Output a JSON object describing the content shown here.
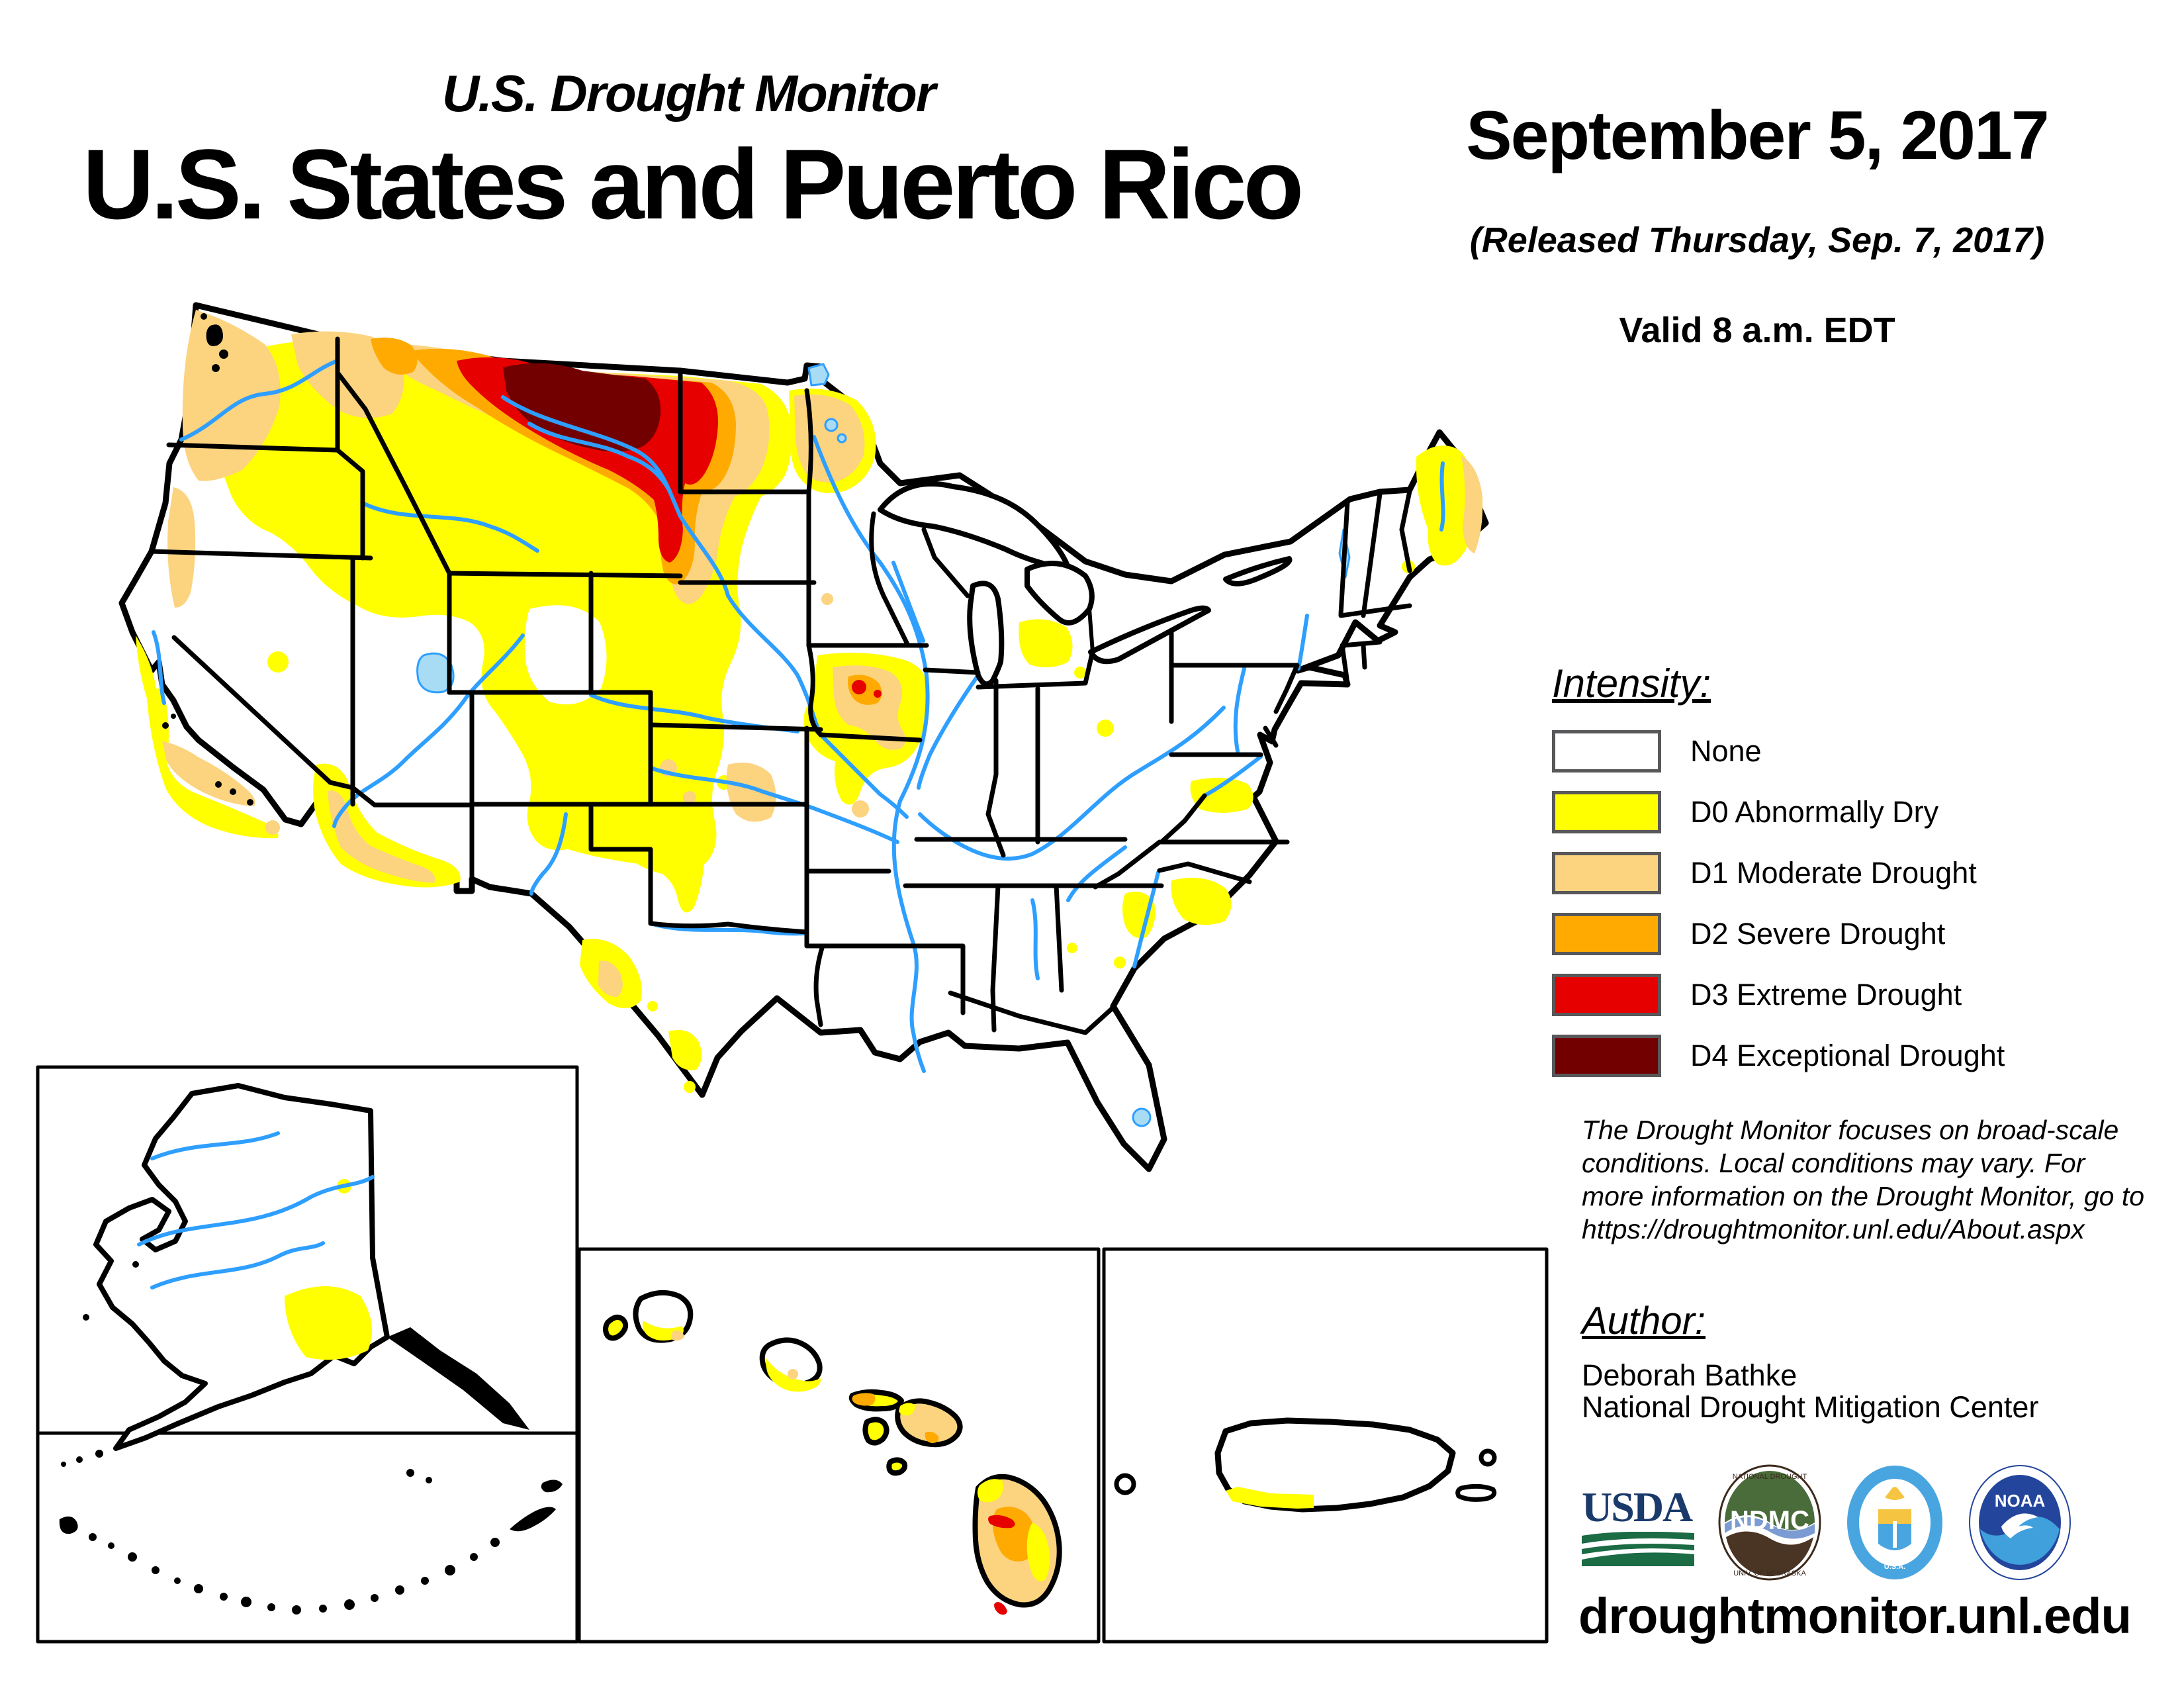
{
  "header": {
    "title_small": "U.S. Drought Monitor",
    "title_big": "U.S. States and Puerto Rico",
    "date": "September 5, 2017",
    "released": "(Released Thursday, Sep. 7, 2017)",
    "valid": "Valid 8 a.m. EDT"
  },
  "legend": {
    "title": "Intensity:",
    "items": [
      {
        "code": "none",
        "label": "None",
        "color": "#FFFFFF"
      },
      {
        "code": "d0",
        "label": "D0 Abnormally Dry",
        "color": "#FFFF00"
      },
      {
        "code": "d1",
        "label": "D1 Moderate Drought",
        "color": "#FCD37F"
      },
      {
        "code": "d2",
        "label": "D2 Severe Drought",
        "color": "#FFAA00"
      },
      {
        "code": "d3",
        "label": "D3 Extreme Drought",
        "color": "#E60000"
      },
      {
        "code": "d4",
        "label": "D4 Exceptional Drought",
        "color": "#730000"
      }
    ]
  },
  "disclaimer": "The Drought Monitor focuses on broad-scale conditions. Local conditions may vary. For more information on the Drought Monitor, go to https://droughtmonitor.unl.edu/About.aspx",
  "author": {
    "title": "Author:",
    "name": "Deborah Bathke",
    "org": "National Drought Mitigation Center"
  },
  "footer": {
    "url": "droughtmonitor.unl.edu",
    "logos": [
      {
        "name": "USDA",
        "label": "USDA"
      },
      {
        "name": "NDMC",
        "label": "NDMC",
        "ring_top": "NATIONAL DROUGHT MITIGATION CENTER",
        "ring_bottom": "UNIVERSITY OF NEBRASKA"
      },
      {
        "name": "Department of Commerce",
        "label": "DEPARTMENT OF COMMERCE / UNITED STATES OF AMERICA"
      },
      {
        "name": "NOAA",
        "label": "NOAA"
      }
    ]
  },
  "colors": {
    "none": "#FFFFFF",
    "d0": "#FFFF00",
    "d1": "#FCD37F",
    "d2": "#FFAA00",
    "d3": "#E60000",
    "d4": "#730000",
    "river": "#2E9FFF",
    "lake": "#A8DCF5",
    "border": "#000000",
    "swatch_border": "#58585A"
  },
  "map": {
    "valid_date": "September 5, 2017",
    "insets": [
      "Alaska",
      "Aleutian Islands",
      "Hawaii",
      "Puerto Rico"
    ],
    "drought_areas": [
      {
        "region": "North-central Montana",
        "level": "D4 Exceptional Drought"
      },
      {
        "region": "Eastern Montana / western North Dakota / north-central South Dakota",
        "level": "D3 Extreme Drought ring with D2 Severe Drought band"
      },
      {
        "region": "Northern Plains (MT, ND, SD fringe)",
        "level": "D1 Moderate Drought surrounded by D0 Abnormally Dry"
      },
      {
        "region": "Western Washington and northwest Oregon coast, northeast Washington / Idaho panhandle",
        "level": "D1 Moderate Drought with small D2 spot"
      },
      {
        "region": "Inland Pacific Northwest, Idaho, Wyoming fringe, western Dakotas",
        "level": "D0 Abnormally Dry"
      },
      {
        "region": "Northwest Minnesota",
        "level": "D1 Moderate Drought with D0 fringe"
      },
      {
        "region": "West-central Iowa",
        "level": "D3 Extreme Drought spot inside D2/D1/D0"
      },
      {
        "region": "Central California coast and southern California",
        "level": "D0 Abnormally Dry with D1 patches"
      },
      {
        "region": "Western and southern Arizona",
        "level": "D1 Moderate Drought strip with D0 fringe"
      },
      {
        "region": "Northern New Mexico / eastern Colorado / Kansas patches",
        "level": "D0 Abnormally Dry"
      },
      {
        "region": "Southwest Texas (Big Bend)",
        "level": "D0 with D1 core"
      },
      {
        "region": "South Texas",
        "level": "D0 Abnormally Dry spots"
      },
      {
        "region": "Lower Michigan, northern Ohio spot",
        "level": "D0 Abnormally Dry"
      },
      {
        "region": "Central Virginia, South Carolina, east-central Georgia",
        "level": "D0 Abnormally Dry"
      },
      {
        "region": "Maine",
        "level": "D0 Abnormally Dry with D1 along eastern border"
      },
      {
        "region": "South-central Alaska",
        "level": "D0 Abnormally Dry"
      },
      {
        "region": "Hawaiian Islands (Molokai, Maui, Big Island)",
        "level": "D1-D2 with small D3 spots on Big Island"
      },
      {
        "region": "Southwest Puerto Rico coast",
        "level": "D0 Abnormally Dry"
      }
    ]
  }
}
